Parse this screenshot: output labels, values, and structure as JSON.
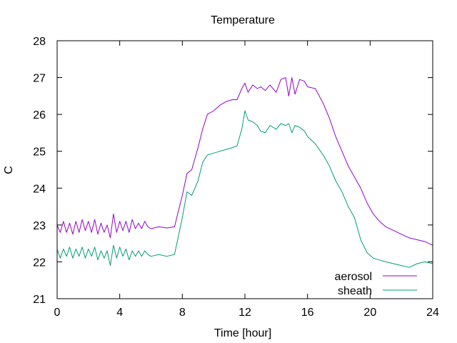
{
  "colors": {
    "aerosol": "#9400d3",
    "sheath": "#009e73",
    "axis": "#000000"
  },
  "chart_data": {
    "type": "line",
    "title": "Temperature",
    "xlabel": "Time [hour]",
    "ylabel": "C",
    "xlim": [
      0,
      24
    ],
    "ylim": [
      21,
      28
    ],
    "xticks": [
      0,
      4,
      8,
      12,
      16,
      20,
      24
    ],
    "yticks": [
      21,
      22,
      23,
      24,
      25,
      26,
      27,
      28
    ],
    "grid": false,
    "legend_position": "bottom-right",
    "series": [
      {
        "name": "aerosol",
        "color": "#9400d3",
        "x": [
          0.0,
          0.2,
          0.4,
          0.6,
          0.8,
          1.0,
          1.2,
          1.4,
          1.6,
          1.8,
          2.0,
          2.2,
          2.4,
          2.6,
          2.8,
          3.0,
          3.2,
          3.4,
          3.6,
          3.8,
          4.0,
          4.2,
          4.4,
          4.6,
          4.8,
          5.0,
          5.2,
          5.4,
          5.6,
          5.8,
          6.0,
          6.5,
          7.0,
          7.5,
          7.7,
          8.0,
          8.3,
          8.6,
          9.0,
          9.3,
          9.6,
          10.0,
          10.4,
          10.8,
          11.2,
          11.5,
          11.8,
          12.0,
          12.2,
          12.5,
          12.8,
          13.0,
          13.3,
          13.6,
          14.0,
          14.3,
          14.6,
          14.8,
          15.0,
          15.2,
          15.5,
          15.8,
          16.0,
          16.5,
          17.0,
          17.4,
          17.8,
          18.2,
          18.6,
          19.0,
          19.4,
          19.8,
          20.2,
          20.6,
          21.0,
          21.5,
          22.0,
          22.5,
          23.0,
          23.5,
          24.0
        ],
        "y": [
          23.0,
          22.8,
          23.1,
          22.8,
          23.05,
          22.75,
          23.1,
          22.8,
          23.15,
          22.85,
          23.1,
          22.8,
          23.15,
          22.75,
          23.05,
          22.8,
          23.0,
          22.65,
          23.3,
          22.8,
          23.1,
          22.85,
          23.1,
          22.8,
          23.15,
          22.9,
          23.05,
          22.9,
          23.1,
          22.95,
          22.9,
          22.95,
          22.92,
          22.95,
          23.3,
          23.8,
          24.4,
          24.5,
          25.1,
          25.6,
          26.0,
          26.1,
          26.25,
          26.35,
          26.4,
          26.4,
          26.7,
          26.85,
          26.6,
          26.8,
          26.7,
          26.75,
          26.65,
          26.8,
          26.6,
          26.95,
          27.0,
          26.5,
          27.0,
          26.55,
          26.95,
          26.9,
          26.75,
          26.7,
          26.3,
          25.9,
          25.4,
          25.0,
          24.6,
          24.3,
          24.0,
          23.6,
          23.3,
          23.1,
          22.95,
          22.85,
          22.75,
          22.65,
          22.6,
          22.55,
          22.45
        ]
      },
      {
        "name": "sheath",
        "color": "#009e73",
        "x": [
          0.0,
          0.2,
          0.4,
          0.6,
          0.8,
          1.0,
          1.2,
          1.4,
          1.6,
          1.8,
          2.0,
          2.2,
          2.4,
          2.6,
          2.8,
          3.0,
          3.2,
          3.4,
          3.6,
          3.8,
          4.0,
          4.2,
          4.4,
          4.6,
          4.8,
          5.0,
          5.2,
          5.4,
          5.6,
          5.8,
          6.0,
          6.5,
          7.0,
          7.5,
          7.7,
          8.0,
          8.3,
          8.6,
          9.0,
          9.3,
          9.6,
          10.0,
          10.4,
          10.8,
          11.2,
          11.5,
          11.8,
          12.0,
          12.2,
          12.5,
          12.8,
          13.0,
          13.3,
          13.6,
          14.0,
          14.3,
          14.6,
          14.8,
          15.0,
          15.2,
          15.5,
          15.8,
          16.0,
          16.5,
          17.0,
          17.4,
          17.8,
          18.2,
          18.6,
          19.0,
          19.4,
          19.8,
          20.2,
          20.6,
          21.0,
          21.5,
          22.0,
          22.5,
          23.0,
          23.5,
          24.0
        ],
        "y": [
          22.35,
          22.1,
          22.35,
          22.15,
          22.4,
          22.1,
          22.35,
          22.15,
          22.4,
          22.1,
          22.35,
          22.15,
          22.4,
          22.05,
          22.3,
          22.1,
          22.3,
          21.9,
          22.45,
          22.1,
          22.4,
          22.15,
          22.35,
          22.05,
          22.3,
          22.15,
          22.3,
          22.15,
          22.3,
          22.2,
          22.15,
          22.2,
          22.15,
          22.2,
          22.6,
          23.2,
          23.9,
          23.8,
          24.2,
          24.7,
          24.9,
          24.95,
          25.0,
          25.05,
          25.1,
          25.15,
          25.6,
          26.1,
          25.85,
          25.8,
          25.7,
          25.55,
          25.5,
          25.7,
          25.6,
          25.75,
          25.7,
          25.75,
          25.5,
          25.7,
          25.65,
          25.55,
          25.4,
          25.2,
          24.9,
          24.6,
          24.2,
          23.9,
          23.5,
          23.2,
          22.6,
          22.25,
          22.1,
          22.05,
          22.0,
          21.95,
          21.9,
          21.85,
          21.95,
          22.0,
          21.95
        ]
      }
    ]
  }
}
